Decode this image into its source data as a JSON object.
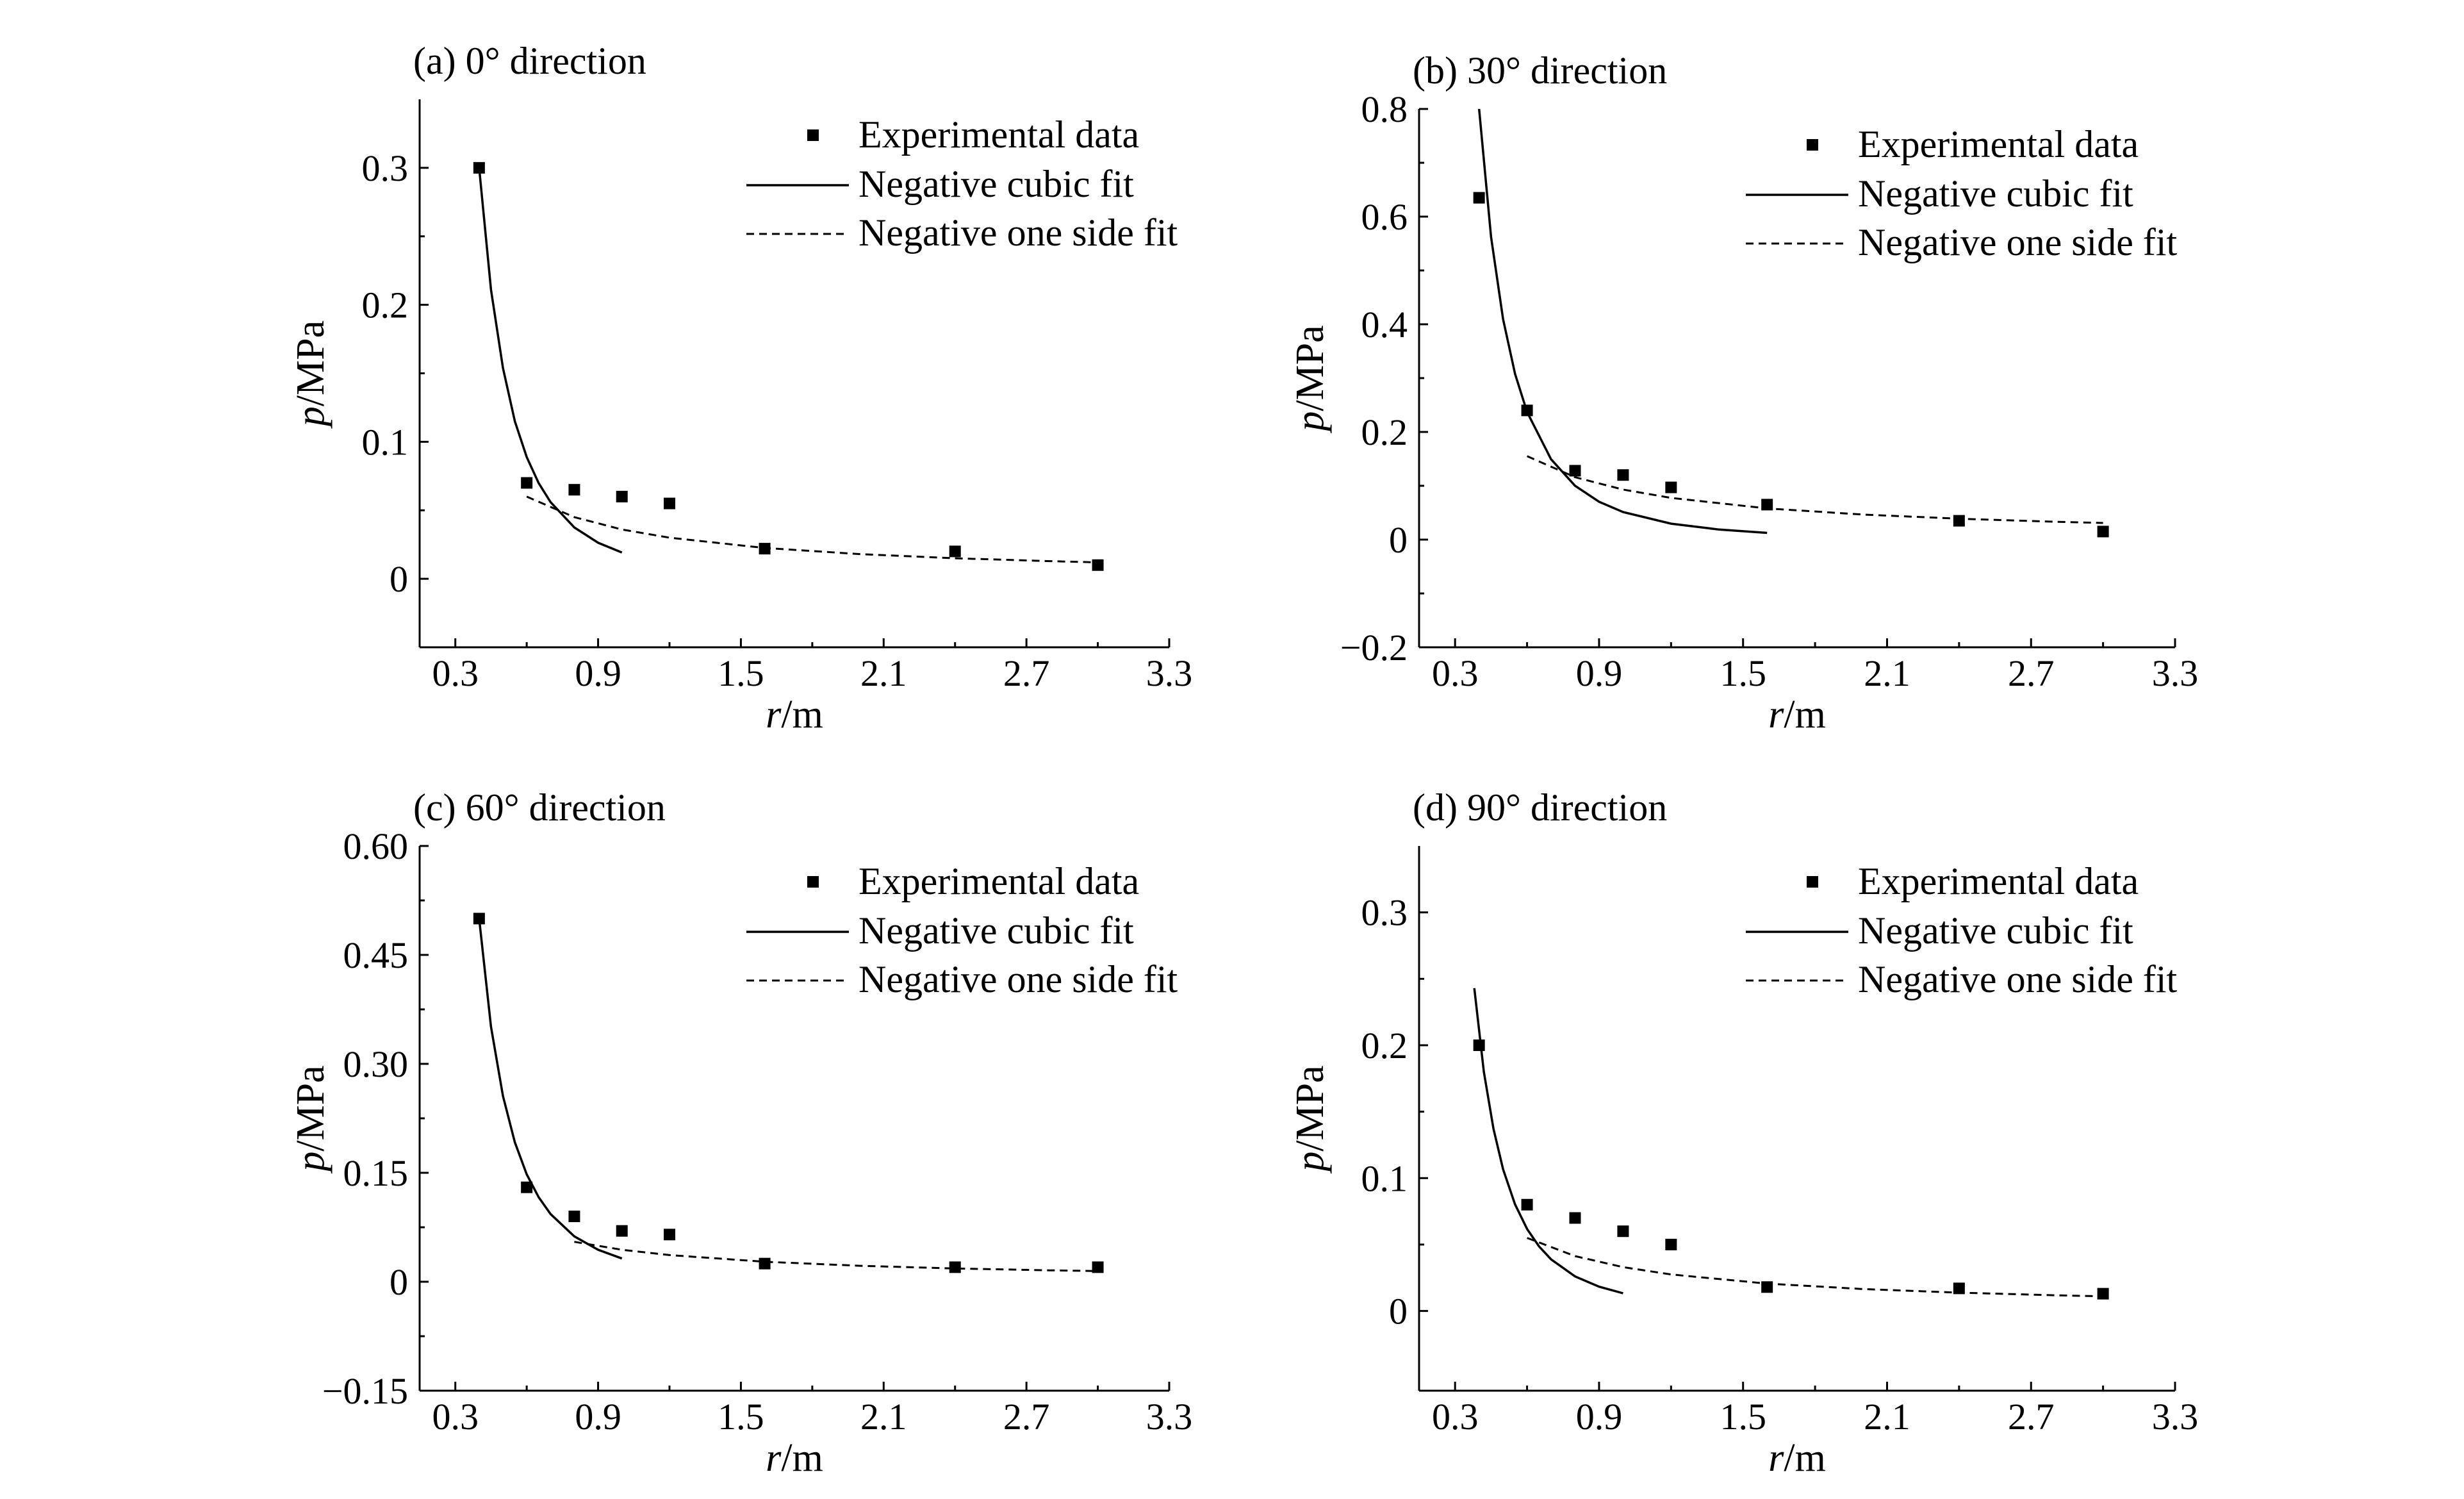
{
  "chart_data": [
    {
      "type": "scatter",
      "title": "(a) 0°  direction",
      "xlabel": "r/m",
      "ylabel": "p/MPa",
      "xlim": [
        0.15,
        3.3
      ],
      "ylim": [
        -0.05,
        0.35
      ],
      "xticks": [
        0.3,
        0.9,
        1.5,
        2.1,
        2.7,
        3.3
      ],
      "xtick_labels": [
        "0.3",
        "0.9",
        "1.5",
        "2.1",
        "2.7",
        "3.3"
      ],
      "yticks": [
        0,
        0.1,
        0.2,
        0.3
      ],
      "ytick_labels": [
        "0",
        "0.1",
        "0.2",
        "0.3"
      ],
      "legend": {
        "placement": "top-right",
        "entries": [
          "Experimental data",
          "Negative cubic fit",
          "Negative one side fit"
        ]
      },
      "series": [
        {
          "name": "Experimental data",
          "kind": "points",
          "x": [
            0.4,
            0.6,
            0.8,
            1.0,
            1.2,
            1.6,
            2.4,
            3.0
          ],
          "y": [
            0.3,
            0.07,
            0.065,
            0.06,
            0.055,
            0.022,
            0.02,
            0.01
          ]
        },
        {
          "name": "Negative cubic fit",
          "kind": "line",
          "x": [
            0.4,
            0.45,
            0.5,
            0.55,
            0.6,
            0.65,
            0.7,
            0.8,
            0.9,
            1.0
          ],
          "y": [
            0.3,
            0.211,
            0.154,
            0.115,
            0.0889,
            0.0699,
            0.056,
            0.0375,
            0.0263,
            0.0192
          ]
        },
        {
          "name": "Negative one side fit",
          "kind": "dashed",
          "x": [
            0.6,
            0.8,
            1.0,
            1.2,
            1.6,
            2.0,
            2.4,
            2.8,
            3.0
          ],
          "y": [
            0.06,
            0.045,
            0.036,
            0.03,
            0.0225,
            0.018,
            0.015,
            0.0129,
            0.012
          ]
        }
      ]
    },
    {
      "type": "scatter",
      "title": "(b) 30°  direction",
      "xlabel": "r/m",
      "ylabel": "p/MPa",
      "xlim": [
        0.15,
        3.3
      ],
      "ylim": [
        -0.2,
        0.8
      ],
      "xticks": [
        0.3,
        0.9,
        1.5,
        2.1,
        2.7,
        3.3
      ],
      "xtick_labels": [
        "0.3",
        "0.9",
        "1.5",
        "2.1",
        "2.7",
        "3.3"
      ],
      "yticks": [
        -0.2,
        0,
        0.2,
        0.4,
        0.6,
        0.8
      ],
      "ytick_labels": [
        "−0.2",
        "0",
        "0.2",
        "0.4",
        "0.6",
        "0.8"
      ],
      "legend": {
        "placement": "top-right",
        "entries": [
          "Experimental data",
          "Negative cubic fit",
          "Negative one side fit"
        ]
      },
      "series": [
        {
          "name": "Experimental data",
          "kind": "points",
          "x": [
            0.4,
            0.6,
            0.8,
            1.0,
            1.2,
            1.6,
            2.4,
            3.0
          ],
          "y": [
            0.635,
            0.24,
            0.128,
            0.12,
            0.097,
            0.065,
            0.035,
            0.015
          ]
        },
        {
          "name": "Negative cubic fit",
          "kind": "line",
          "x": [
            0.4,
            0.45,
            0.5,
            0.55,
            0.6,
            0.7,
            0.8,
            0.9,
            1.0,
            1.2,
            1.4,
            1.6
          ],
          "y": [
            0.8,
            0.5619,
            0.4096,
            0.3078,
            0.237,
            0.1493,
            0.1,
            0.0702,
            0.0512,
            0.0296,
            0.0187,
            0.0125
          ]
        },
        {
          "name": "Negative one side fit",
          "kind": "dashed",
          "x": [
            0.6,
            0.8,
            1.0,
            1.2,
            1.6,
            2.0,
            2.4,
            2.8,
            3.0
          ],
          "y": [
            0.155,
            0.116,
            0.093,
            0.0775,
            0.058,
            0.0465,
            0.0388,
            0.0332,
            0.031
          ]
        }
      ]
    },
    {
      "type": "scatter",
      "title": "(c) 60°  direction",
      "xlabel": "r/m",
      "ylabel": "p/MPa",
      "xlim": [
        0.15,
        3.3
      ],
      "ylim": [
        -0.15,
        0.6
      ],
      "xticks": [
        0.3,
        0.9,
        1.5,
        2.1,
        2.7,
        3.3
      ],
      "xtick_labels": [
        "0.3",
        "0.9",
        "1.5",
        "2.1",
        "2.7",
        "3.3"
      ],
      "yticks": [
        -0.15,
        0,
        0.15,
        0.3,
        0.45,
        0.6
      ],
      "ytick_labels": [
        "−0.15",
        "0",
        "0.15",
        "0.30",
        "0.45",
        "0.60"
      ],
      "legend": {
        "placement": "top-right",
        "entries": [
          "Experimental data",
          "Negative cubic fit",
          "Negative one side fit"
        ]
      },
      "series": [
        {
          "name": "Experimental data",
          "kind": "points",
          "x": [
            0.4,
            0.6,
            0.8,
            1.0,
            1.2,
            1.6,
            2.4,
            3.0
          ],
          "y": [
            0.5,
            0.13,
            0.09,
            0.07,
            0.065,
            0.025,
            0.02,
            0.02
          ]
        },
        {
          "name": "Negative cubic fit",
          "kind": "line",
          "x": [
            0.4,
            0.45,
            0.5,
            0.55,
            0.6,
            0.65,
            0.7,
            0.8,
            0.9,
            1.0
          ],
          "y": [
            0.5,
            0.351,
            0.256,
            0.192,
            0.148,
            0.1165,
            0.0933,
            0.0625,
            0.0439,
            0.032
          ]
        },
        {
          "name": "Negative one side fit",
          "kind": "dashed",
          "x": [
            0.8,
            1.0,
            1.2,
            1.6,
            2.0,
            2.4,
            2.8,
            3.0
          ],
          "y": [
            0.055,
            0.044,
            0.0367,
            0.0275,
            0.022,
            0.0183,
            0.0157,
            0.0147
          ]
        }
      ]
    },
    {
      "type": "scatter",
      "title": "(d) 90°  direction",
      "xlabel": "r/m",
      "ylabel": "p/MPa",
      "xlim": [
        0.15,
        3.3
      ],
      "ylim": [
        -0.06,
        0.35
      ],
      "xticks": [
        0.3,
        0.9,
        1.5,
        2.1,
        2.7,
        3.3
      ],
      "xtick_labels": [
        "0.3",
        "0.9",
        "1.5",
        "2.1",
        "2.7",
        "3.3"
      ],
      "yticks": [
        0,
        0.1,
        0.2,
        0.3
      ],
      "ytick_labels": [
        "0",
        "0.1",
        "0.2",
        "0.3"
      ],
      "legend": {
        "placement": "top-right",
        "entries": [
          "Experimental data",
          "Negative cubic fit",
          "Negative one side fit"
        ]
      },
      "series": [
        {
          "name": "Experimental data",
          "kind": "points",
          "x": [
            0.4,
            0.6,
            0.8,
            1.0,
            1.2,
            1.6,
            2.4,
            3.0
          ],
          "y": [
            0.2,
            0.08,
            0.07,
            0.06,
            0.05,
            0.018,
            0.017,
            0.013
          ]
        },
        {
          "name": "Negative cubic fit",
          "kind": "line",
          "x": [
            0.38,
            0.42,
            0.46,
            0.5,
            0.55,
            0.6,
            0.65,
            0.7,
            0.8,
            0.9,
            1.0
          ],
          "y": [
            0.243,
            0.18,
            0.1372,
            0.1067,
            0.0802,
            0.0617,
            0.0486,
            0.0389,
            0.026,
            0.0183,
            0.0133
          ]
        },
        {
          "name": "Negative one side fit",
          "kind": "dashed",
          "x": [
            0.6,
            0.8,
            1.0,
            1.2,
            1.6,
            2.0,
            2.4,
            2.8,
            3.0
          ],
          "y": [
            0.055,
            0.0413,
            0.033,
            0.0275,
            0.0206,
            0.0165,
            0.0138,
            0.0118,
            0.011
          ]
        }
      ]
    }
  ]
}
